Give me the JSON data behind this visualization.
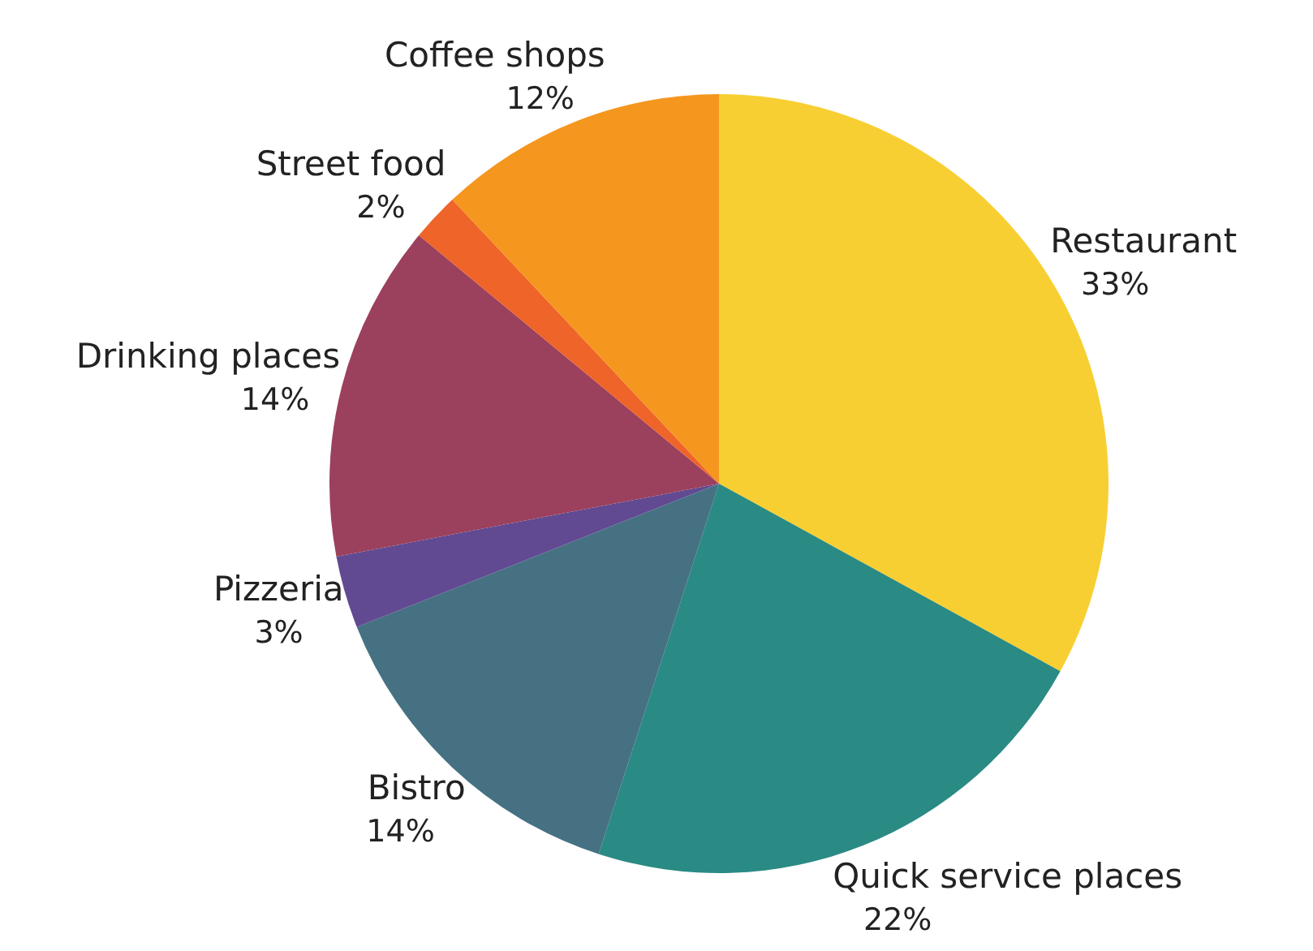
{
  "chart_data": {
    "type": "pie",
    "categories": [
      "Restaurant",
      "Quick service places",
      "Bistro",
      "Pizzeria",
      "Drinking places",
      "Street food",
      "Coffee shops"
    ],
    "values": [
      33,
      22,
      14,
      3,
      14,
      2,
      12
    ],
    "value_labels": [
      "33%",
      "22%",
      "14%",
      "3%",
      "14%",
      "2%",
      "12%"
    ],
    "colors": [
      "#f8cf32",
      "#2a8a84",
      "#467183",
      "#614a92",
      "#9b405d",
      "#ef6429",
      "#f5961f"
    ]
  }
}
